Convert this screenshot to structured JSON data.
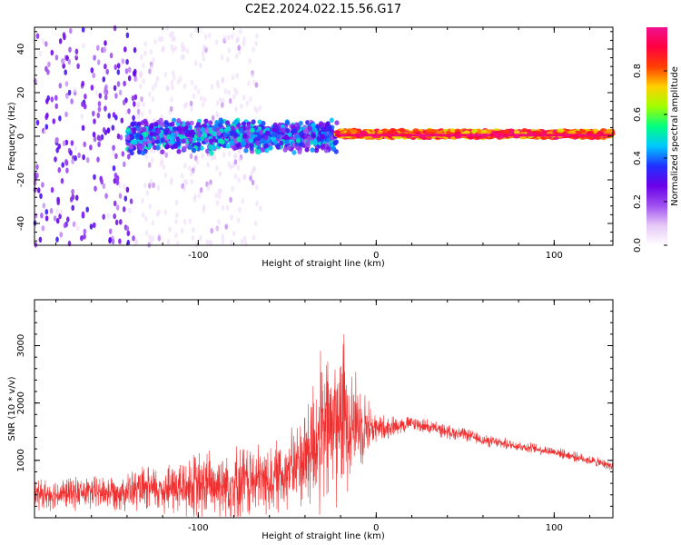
{
  "figure_title": "C2E2.2024.022.15.56.G17",
  "chart_data": [
    {
      "type": "heatmap",
      "xlabel": "Height of straight line (km)",
      "ylabel": "Frequency (Hz)",
      "xlim": [
        -192,
        133
      ],
      "ylim": [
        -50,
        50
      ],
      "x_ticks": [
        -100,
        0,
        100
      ],
      "y_ticks": [
        -40,
        -20,
        0,
        20,
        40
      ],
      "colorbar": {
        "label": "Normalized spectral amplitude",
        "range": [
          0,
          1
        ],
        "ticks": [
          0.0,
          0.2,
          0.4,
          0.6,
          0.8
        ],
        "colormap": [
          "#ffffff",
          "#e6c8f7",
          "#a050f0",
          "#6a00e8",
          "#2030ff",
          "#00c8ff",
          "#00ff80",
          "#a0ff00",
          "#ffd000",
          "#ff4000",
          "#ff0040",
          "#f01090"
        ]
      },
      "regions": [
        {
          "x_range": [
            -192,
            -135
          ],
          "freq_spread_hz": 50,
          "amplitude": 0.25
        },
        {
          "x_range": [
            -135,
            -65
          ],
          "freq_spread_hz": 50,
          "amplitude": 0.1
        },
        {
          "x_range": [
            -140,
            -22
          ],
          "freq_center_hz": 0,
          "freq_spread_hz": 8,
          "amplitude": 0.4
        },
        {
          "x_range": [
            -22,
            133
          ],
          "freq_center_hz": 1,
          "freq_spread_hz": 2,
          "amplitude": 0.9
        }
      ]
    },
    {
      "type": "line",
      "xlabel": "Height of straight line (km)",
      "ylabel": "SNR (10 * v/v)",
      "xlim": [
        -192,
        133
      ],
      "ylim": [
        0,
        3800
      ],
      "x_ticks": [
        -100,
        0,
        100
      ],
      "y_ticks": [
        1000,
        2000,
        3000
      ],
      "color": "#f03030",
      "envelope": {
        "x": [
          -192,
          -150,
          -120,
          -100,
          -80,
          -60,
          -45,
          -35,
          -25,
          -18,
          -10,
          0,
          10,
          20,
          30,
          40,
          50,
          60,
          80,
          100,
          120,
          133
        ],
        "mean": [
          400,
          450,
          500,
          550,
          600,
          650,
          900,
          1300,
          1600,
          1800,
          1650,
          1550,
          1600,
          1650,
          1580,
          1500,
          1450,
          1350,
          1250,
          1150,
          1000,
          900
        ],
        "spread": [
          300,
          350,
          500,
          700,
          800,
          700,
          800,
          1500,
          1700,
          1600,
          900,
          300,
          200,
          150,
          150,
          140,
          130,
          120,
          110,
          100,
          100,
          90
        ]
      }
    }
  ]
}
